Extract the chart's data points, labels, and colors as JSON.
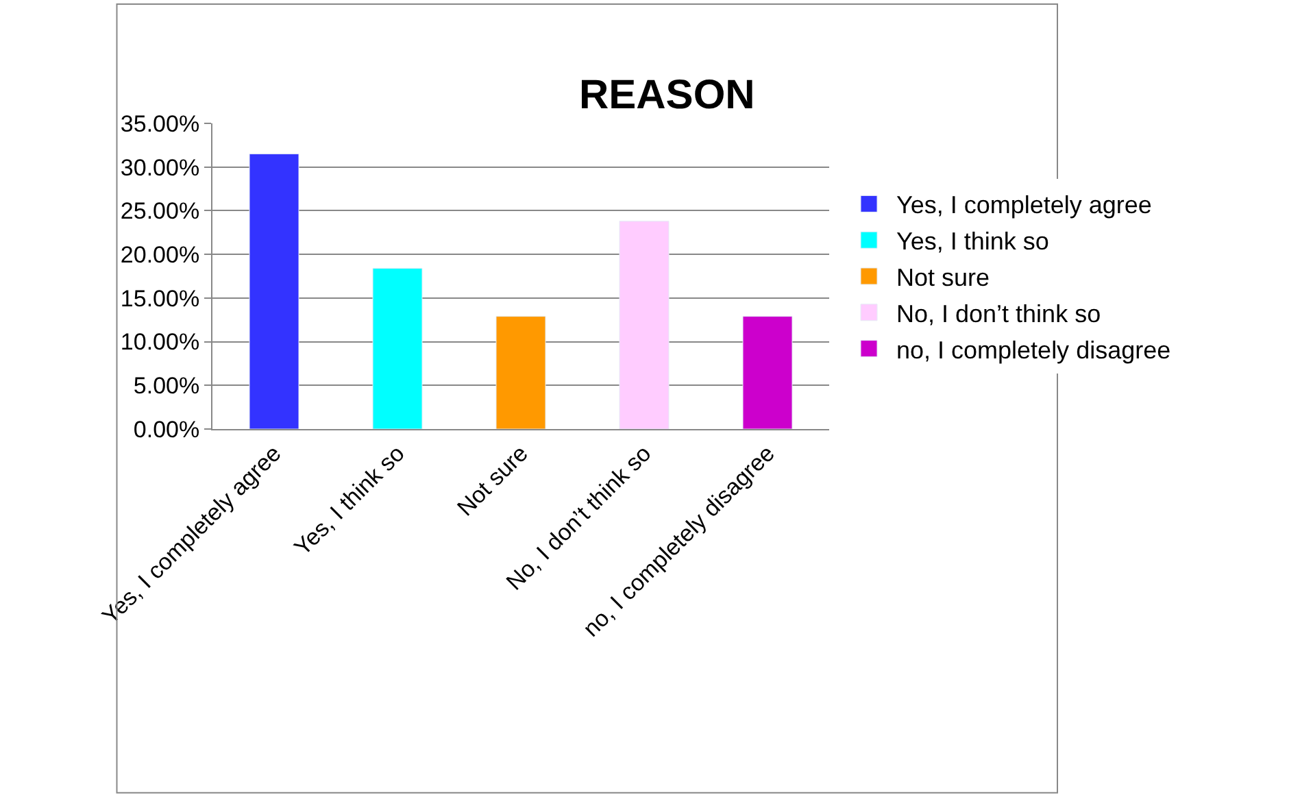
{
  "chart_data": {
    "type": "bar",
    "title": "REASON",
    "categories": [
      "Yes, I completely agree",
      "Yes, I think so",
      "Not sure",
      "No, I don’t think so",
      "no, I completely disagree"
    ],
    "series": [
      {
        "name": "Yes, I completely agree",
        "color": "#3333ff",
        "values": [
          31.5,
          null,
          null,
          null,
          null
        ]
      },
      {
        "name": "Yes, I think so",
        "color": "#00ffff",
        "values": [
          null,
          18.4,
          null,
          null,
          null
        ]
      },
      {
        "name": "Not sure",
        "color": "#ff9900",
        "values": [
          null,
          null,
          12.9,
          null,
          null
        ]
      },
      {
        "name": "No, I don’t think so",
        "color": "#ffccff",
        "values": [
          null,
          null,
          null,
          23.8,
          null
        ]
      },
      {
        "name": "no, I completely disagree",
        "color": "#cc00cc",
        "values": [
          null,
          null,
          null,
          null,
          12.9
        ]
      }
    ],
    "ylim": [
      0,
      35
    ],
    "yticks": [
      {
        "value": 0,
        "label": "0.00%"
      },
      {
        "value": 5,
        "label": "5.00%"
      },
      {
        "value": 10,
        "label": "10.00%"
      },
      {
        "value": 15,
        "label": "15.00%"
      },
      {
        "value": 20,
        "label": "20.00%"
      },
      {
        "value": 25,
        "label": "25.00%"
      },
      {
        "value": 30,
        "label": "30.00%"
      },
      {
        "value": 35,
        "label": "35.00%"
      }
    ],
    "grid": "y",
    "legend": "right"
  }
}
